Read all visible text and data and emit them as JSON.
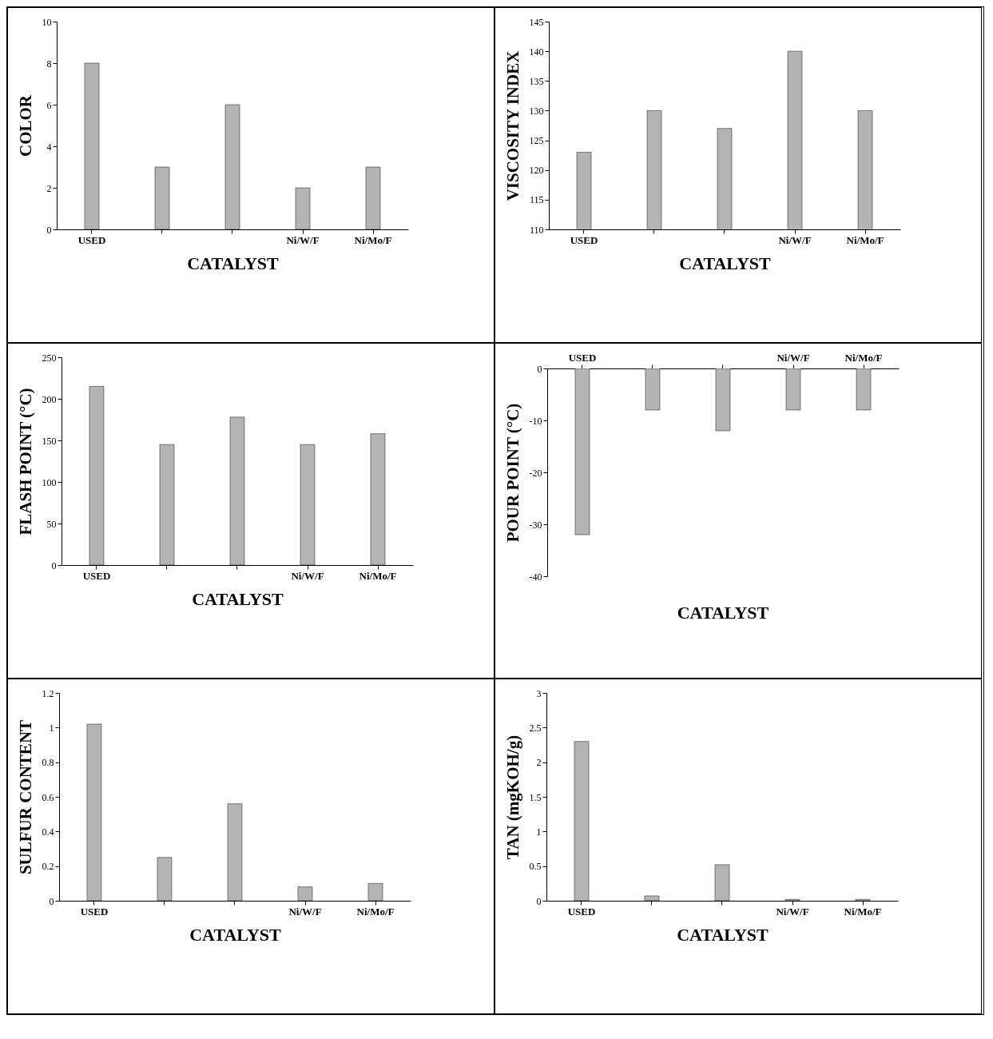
{
  "chart_data": [
    {
      "type": "bar",
      "categories": [
        "USED",
        null,
        null,
        "Ni/W/F",
        "Ni/Mo/F"
      ],
      "values": [
        8,
        3,
        6,
        2,
        3
      ],
      "color": "#b4b4b4",
      "xlabel": "CATALYST",
      "ylabel": "COLOR",
      "ylim": [
        0,
        10
      ],
      "yticks": [
        0,
        2,
        4,
        6,
        8,
        10
      ],
      "grid": false
    },
    {
      "type": "bar",
      "categories": [
        "USED",
        null,
        null,
        "Ni/W/F",
        "Ni/Mo/F"
      ],
      "values": [
        123,
        130,
        127,
        140,
        130
      ],
      "color": "#b4b4b4",
      "xlabel": "CATALYST",
      "ylabel": "VISCOSITY INDEX",
      "ylim": [
        110,
        145
      ],
      "yticks": [
        110,
        115,
        120,
        125,
        130,
        135,
        140,
        145
      ],
      "grid": false
    },
    {
      "type": "bar",
      "categories": [
        "USED",
        null,
        null,
        "Ni/W/F",
        "Ni/Mo/F"
      ],
      "values": [
        215,
        145,
        178,
        145,
        158
      ],
      "color": "#b4b4b4",
      "xlabel": "CATALYST",
      "ylabel": "FLASH POINT (°C)",
      "ylim": [
        0,
        250
      ],
      "yticks": [
        0,
        50,
        100,
        150,
        200,
        250
      ],
      "grid": false
    },
    {
      "type": "bar",
      "categories": [
        "USED",
        null,
        null,
        "Ni/W/F",
        "Ni/Mo/F"
      ],
      "values": [
        -32,
        -8,
        -12,
        -8,
        -8
      ],
      "color": "#b4b4b4",
      "xlabel": "CATALYST",
      "ylabel": "POUR POINT (°C)",
      "ylim": [
        -40,
        0
      ],
      "yticks": [
        -40,
        -30,
        -20,
        -10,
        0
      ],
      "grid": false
    },
    {
      "type": "bar",
      "categories": [
        "USED",
        null,
        null,
        "Ni/W/F",
        "Ni/Mo/F"
      ],
      "values": [
        1.02,
        0.25,
        0.56,
        0.08,
        0.1
      ],
      "color": "#b4b4b4",
      "xlabel": "CATALYST",
      "ylabel": "SULFUR  CONTENT",
      "ylim": [
        0,
        1.2
      ],
      "yticks": [
        0,
        0.2,
        0.4,
        0.6,
        0.8,
        1,
        1.2
      ],
      "grid": false
    },
    {
      "type": "bar",
      "categories": [
        "USED",
        null,
        null,
        "Ni/W/F",
        "Ni/Mo/F"
      ],
      "values": [
        2.3,
        0.07,
        0.52,
        0.02,
        0.02
      ],
      "color": "#b4b4b4",
      "xlabel": "CATALYST",
      "ylabel": "TAN (mgKOH/g)",
      "ylim": [
        0,
        3
      ],
      "yticks": [
        0,
        0.5,
        1,
        1.5,
        2,
        2.5,
        3
      ],
      "grid": false
    }
  ]
}
